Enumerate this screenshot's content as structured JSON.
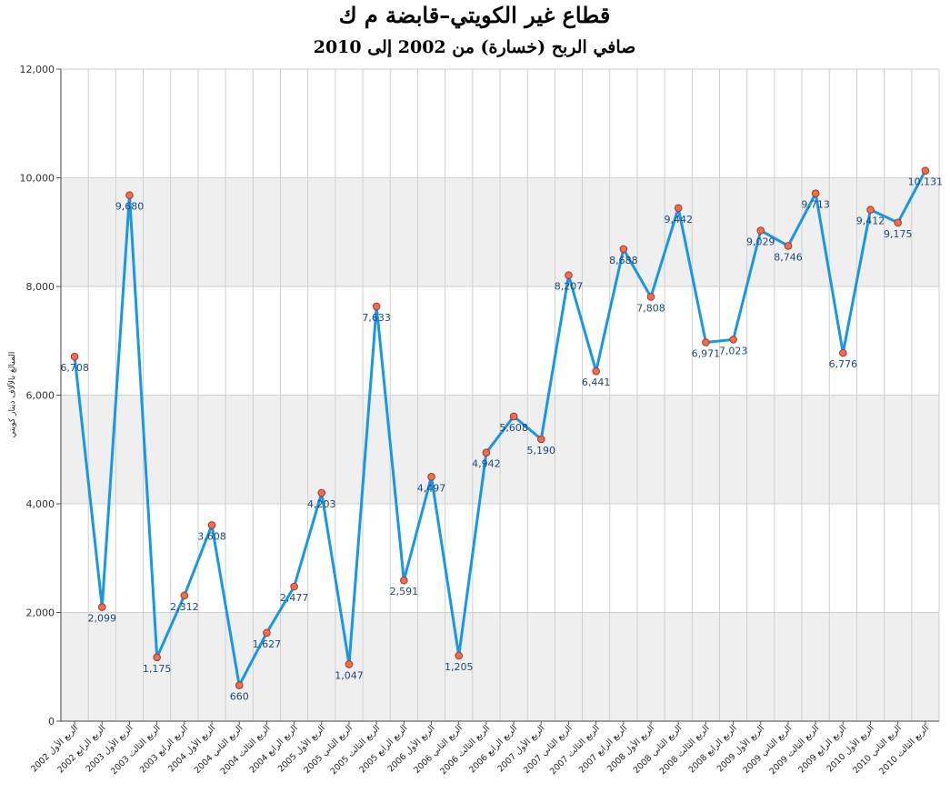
{
  "chart_data": {
    "type": "line",
    "title": "قطاع غير الكويتي–قابضة م ك",
    "subtitle": "صافي الربح (خسارة) من 2002 إلى 2010",
    "ylabel": "المبالغ بالآلاف دينار كويتي",
    "xlabel": "",
    "ylim": [
      0,
      12000
    ],
    "yticks": [
      "0",
      "2,000",
      "4,000",
      "6,000",
      "8,000",
      "10,000",
      "12,000"
    ],
    "grid": true,
    "line_color": "#1a96e6",
    "marker_fill": "#f26c4f",
    "marker_stroke": "#a33a20",
    "categories": [
      "الربع الأول 2002",
      "الربع الرابع 2002",
      "الربع الأول 2003",
      "الربع الثالث 2003",
      "الربع الرابع 2003",
      "الربع الأول 2004",
      "الربع الثاني 2004",
      "الربع الثالث 2004",
      "الربع الرابع 2004",
      "الربع الأول 2005",
      "الربع الثاني 2005",
      "الربع الثالث 2005",
      "الربع الرابع 2005",
      "الربع الأول 2006",
      "الربع الثاني 2006",
      "الربع الثالث 2006",
      "الربع الرابع 2006",
      "الربع الأول 2007",
      "الربع الثاني 2007",
      "الربع الثالث 2007",
      "الربع الرابع 2007",
      "الربع الأول 2008",
      "الربع الثاني 2008",
      "الربع الثالث 2008",
      "الربع الرابع 2008",
      "الربع الأول 2009",
      "الربع الثاني 2009",
      "الربع الثالث 2009",
      "الربع الرابع 2009",
      "الربع الأول 2010",
      "الربع الثاني 2010",
      "الربع الثالث 2010"
    ],
    "values": [
      6708,
      2099,
      9680,
      1175,
      2312,
      3608,
      660,
      1627,
      2477,
      4203,
      1047,
      7633,
      2591,
      4497,
      1205,
      4942,
      5608,
      5190,
      8207,
      6441,
      8688,
      7808,
      9442,
      6971,
      7023,
      9029,
      8746,
      9713,
      6776,
      9412,
      9175,
      10131
    ],
    "value_labels": [
      "6,708",
      "2,099",
      "9,680",
      "1,175",
      "2,312",
      "3,608",
      "660",
      "1,627",
      "2,477",
      "4,203",
      "1,047",
      "7,633",
      "2,591",
      "4,497",
      "1,205",
      "4,942",
      "5,608",
      "5,190",
      "8,207",
      "6,441",
      "8,688",
      "7,808",
      "9,442",
      "6,971",
      "7,023",
      "9,029",
      "8,746",
      "9,713",
      "6,776",
      "9,412",
      "9,175",
      "10,131"
    ]
  }
}
